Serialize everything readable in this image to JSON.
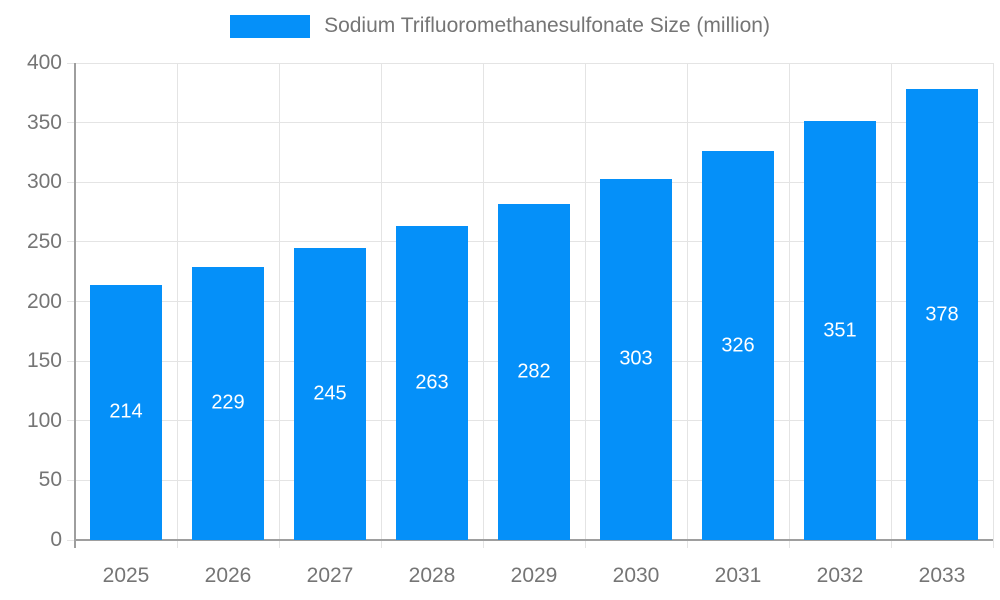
{
  "chart_data": {
    "type": "bar",
    "title": "Sodium Trifluoromethanesulfonate Size (million)",
    "categories": [
      "2025",
      "2026",
      "2027",
      "2028",
      "2029",
      "2030",
      "2031",
      "2032",
      "2033"
    ],
    "values": [
      214,
      229,
      245,
      263,
      282,
      303,
      326,
      351,
      378
    ],
    "xlabel": "",
    "ylabel": "",
    "ylim": [
      0,
      400
    ],
    "yticks": [
      0,
      50,
      100,
      150,
      200,
      250,
      300,
      350,
      400
    ],
    "grid": true,
    "legend_position": "top",
    "value_labels": "inside-center"
  },
  "legend": {
    "swatch_color": "#0590f9"
  },
  "colors": {
    "bar": "#0590f9",
    "grid": "#e4e4e4",
    "axis": "#9e9e9e",
    "text": "#757575",
    "value_label": "#ffffff",
    "background": "#ffffff"
  }
}
